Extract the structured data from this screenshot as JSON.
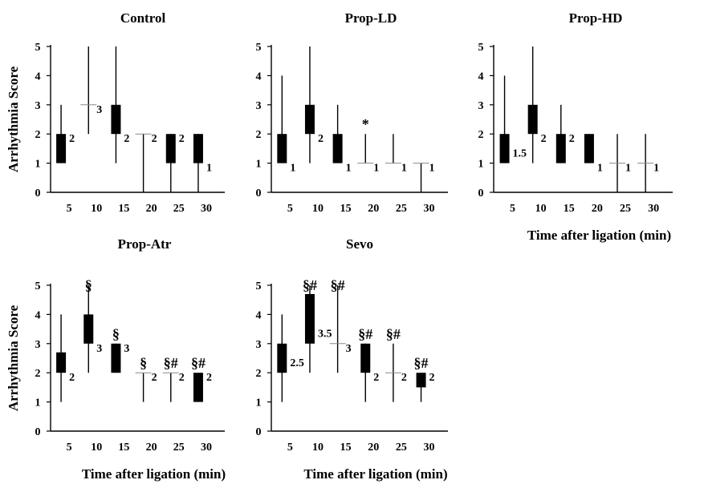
{
  "chart_data": [
    {
      "type": "box",
      "title": "Control",
      "ylabel": "Arrhythmia Score",
      "xlabel": "",
      "ylim": [
        0,
        5
      ],
      "yticks": [
        "0",
        "1",
        "2",
        "3",
        "4",
        "5"
      ],
      "categories": [
        "5",
        "10",
        "15",
        "20",
        "25",
        "30"
      ],
      "boxes": [
        {
          "x": "5",
          "min": 1,
          "q1": 1,
          "q3": 2,
          "max": 3,
          "median": 2,
          "label": "2",
          "annotation": ""
        },
        {
          "x": "10",
          "min": 2,
          "q1": 3,
          "q3": 3,
          "max": 5,
          "median": 3,
          "label": "3",
          "annotation": ""
        },
        {
          "x": "15",
          "min": 1,
          "q1": 2,
          "q3": 3,
          "max": 5,
          "median": 2,
          "label": "2",
          "annotation": ""
        },
        {
          "x": "20",
          "min": 0,
          "q1": 2,
          "q3": 2,
          "max": 2,
          "median": 2,
          "label": "2",
          "annotation": ""
        },
        {
          "x": "25",
          "min": 0,
          "q1": 1,
          "q3": 2,
          "max": 2,
          "median": 2,
          "label": "2",
          "annotation": ""
        },
        {
          "x": "30",
          "min": 0,
          "q1": 1,
          "q3": 2,
          "max": 2,
          "median": 1,
          "label": "1",
          "annotation": ""
        }
      ]
    },
    {
      "type": "box",
      "title": "Prop-LD",
      "ylabel": "",
      "xlabel": "",
      "ylim": [
        0,
        5
      ],
      "yticks": [
        "0",
        "1",
        "2",
        "3",
        "4",
        "5"
      ],
      "categories": [
        "5",
        "10",
        "15",
        "20",
        "25",
        "30"
      ],
      "boxes": [
        {
          "x": "5",
          "min": 1,
          "q1": 1,
          "q3": 2,
          "max": 4,
          "median": 1,
          "label": "1",
          "annotation": ""
        },
        {
          "x": "10",
          "min": 1,
          "q1": 2,
          "q3": 3,
          "max": 5,
          "median": 2,
          "label": "2",
          "annotation": ""
        },
        {
          "x": "15",
          "min": 1,
          "q1": 1,
          "q3": 2,
          "max": 3,
          "median": 1,
          "label": "1",
          "annotation": ""
        },
        {
          "x": "20",
          "min": 1,
          "q1": 1,
          "q3": 1,
          "max": 2,
          "median": 1,
          "label": "1",
          "annotation": "*"
        },
        {
          "x": "25",
          "min": 1,
          "q1": 1,
          "q3": 1,
          "max": 2,
          "median": 1,
          "label": "1",
          "annotation": ""
        },
        {
          "x": "30",
          "min": 0,
          "q1": 1,
          "q3": 1,
          "max": 1,
          "median": 1,
          "label": "1",
          "annotation": ""
        }
      ]
    },
    {
      "type": "box",
      "title": "Prop-HD",
      "ylabel": "",
      "xlabel": "Time after ligation (min)",
      "ylim": [
        0,
        5
      ],
      "yticks": [
        "0",
        "1",
        "2",
        "3",
        "4",
        "5"
      ],
      "categories": [
        "5",
        "10",
        "15",
        "20",
        "25",
        "30"
      ],
      "boxes": [
        {
          "x": "5",
          "min": 1,
          "q1": 1,
          "q3": 2,
          "max": 4,
          "median": 1.5,
          "label": "1.5",
          "annotation": ""
        },
        {
          "x": "10",
          "min": 1,
          "q1": 2,
          "q3": 3,
          "max": 5,
          "median": 2,
          "label": "2",
          "annotation": ""
        },
        {
          "x": "15",
          "min": 1,
          "q1": 1,
          "q3": 2,
          "max": 3,
          "median": 2,
          "label": "2",
          "annotation": ""
        },
        {
          "x": "20",
          "min": 1,
          "q1": 1,
          "q3": 2,
          "max": 2,
          "median": 1,
          "label": "1",
          "annotation": ""
        },
        {
          "x": "25",
          "min": 0,
          "q1": 1,
          "q3": 1,
          "max": 2,
          "median": 1,
          "label": "1",
          "annotation": ""
        },
        {
          "x": "30",
          "min": 0,
          "q1": 1,
          "q3": 1,
          "max": 2,
          "median": 1,
          "label": "1",
          "annotation": ""
        }
      ]
    },
    {
      "type": "box",
      "title": "Prop-Atr",
      "ylabel": "Arrhythmia Score",
      "xlabel": "Time after ligation (min)",
      "ylim": [
        0,
        5
      ],
      "yticks": [
        "0",
        "1",
        "2",
        "3",
        "4",
        "5"
      ],
      "categories": [
        "5",
        "10",
        "15",
        "20",
        "25",
        "30"
      ],
      "boxes": [
        {
          "x": "5",
          "min": 1,
          "q1": 2,
          "q3": 2.7,
          "max": 4,
          "median": 2,
          "label": "2",
          "annotation": ""
        },
        {
          "x": "10",
          "min": 2,
          "q1": 3,
          "q3": 4,
          "max": 5,
          "median": 3,
          "label": "3",
          "annotation": "§"
        },
        {
          "x": "15",
          "min": 2,
          "q1": 2,
          "q3": 3,
          "max": 3,
          "median": 3,
          "label": "3",
          "annotation": "§"
        },
        {
          "x": "20",
          "min": 1,
          "q1": 2,
          "q3": 2,
          "max": 2,
          "median": 2,
          "label": "2",
          "annotation": "§"
        },
        {
          "x": "25",
          "min": 1,
          "q1": 2,
          "q3": 2,
          "max": 2,
          "median": 2,
          "label": "2",
          "annotation": "§#"
        },
        {
          "x": "30",
          "min": 1,
          "q1": 1,
          "q3": 2,
          "max": 2,
          "median": 2,
          "label": "2",
          "annotation": "§#"
        }
      ]
    },
    {
      "type": "box",
      "title": "Sevo",
      "ylabel": "",
      "xlabel": "Time after ligation (min)",
      "ylim": [
        0,
        5
      ],
      "yticks": [
        "0",
        "1",
        "2",
        "3",
        "4",
        "5"
      ],
      "categories": [
        "5",
        "10",
        "15",
        "20",
        "25",
        "30"
      ],
      "boxes": [
        {
          "x": "5",
          "min": 1,
          "q1": 2,
          "q3": 3,
          "max": 4,
          "median": 2.5,
          "label": "2.5",
          "annotation": ""
        },
        {
          "x": "10",
          "min": 2,
          "q1": 3,
          "q3": 4.7,
          "max": 5,
          "median": 3.5,
          "label": "3.5",
          "annotation": "§#"
        },
        {
          "x": "15",
          "min": 2,
          "q1": 3,
          "q3": 3,
          "max": 5,
          "median": 3,
          "label": "3",
          "annotation": "§#"
        },
        {
          "x": "20",
          "min": 1,
          "q1": 2,
          "q3": 3,
          "max": 3,
          "median": 2,
          "label": "2",
          "annotation": "§#"
        },
        {
          "x": "25",
          "min": 1,
          "q1": 2,
          "q3": 2,
          "max": 3,
          "median": 2,
          "label": "2",
          "annotation": "§#"
        },
        {
          "x": "30",
          "min": 1,
          "q1": 1.5,
          "q3": 2,
          "max": 2,
          "median": 2,
          "label": "2",
          "annotation": "§#"
        }
      ]
    }
  ]
}
